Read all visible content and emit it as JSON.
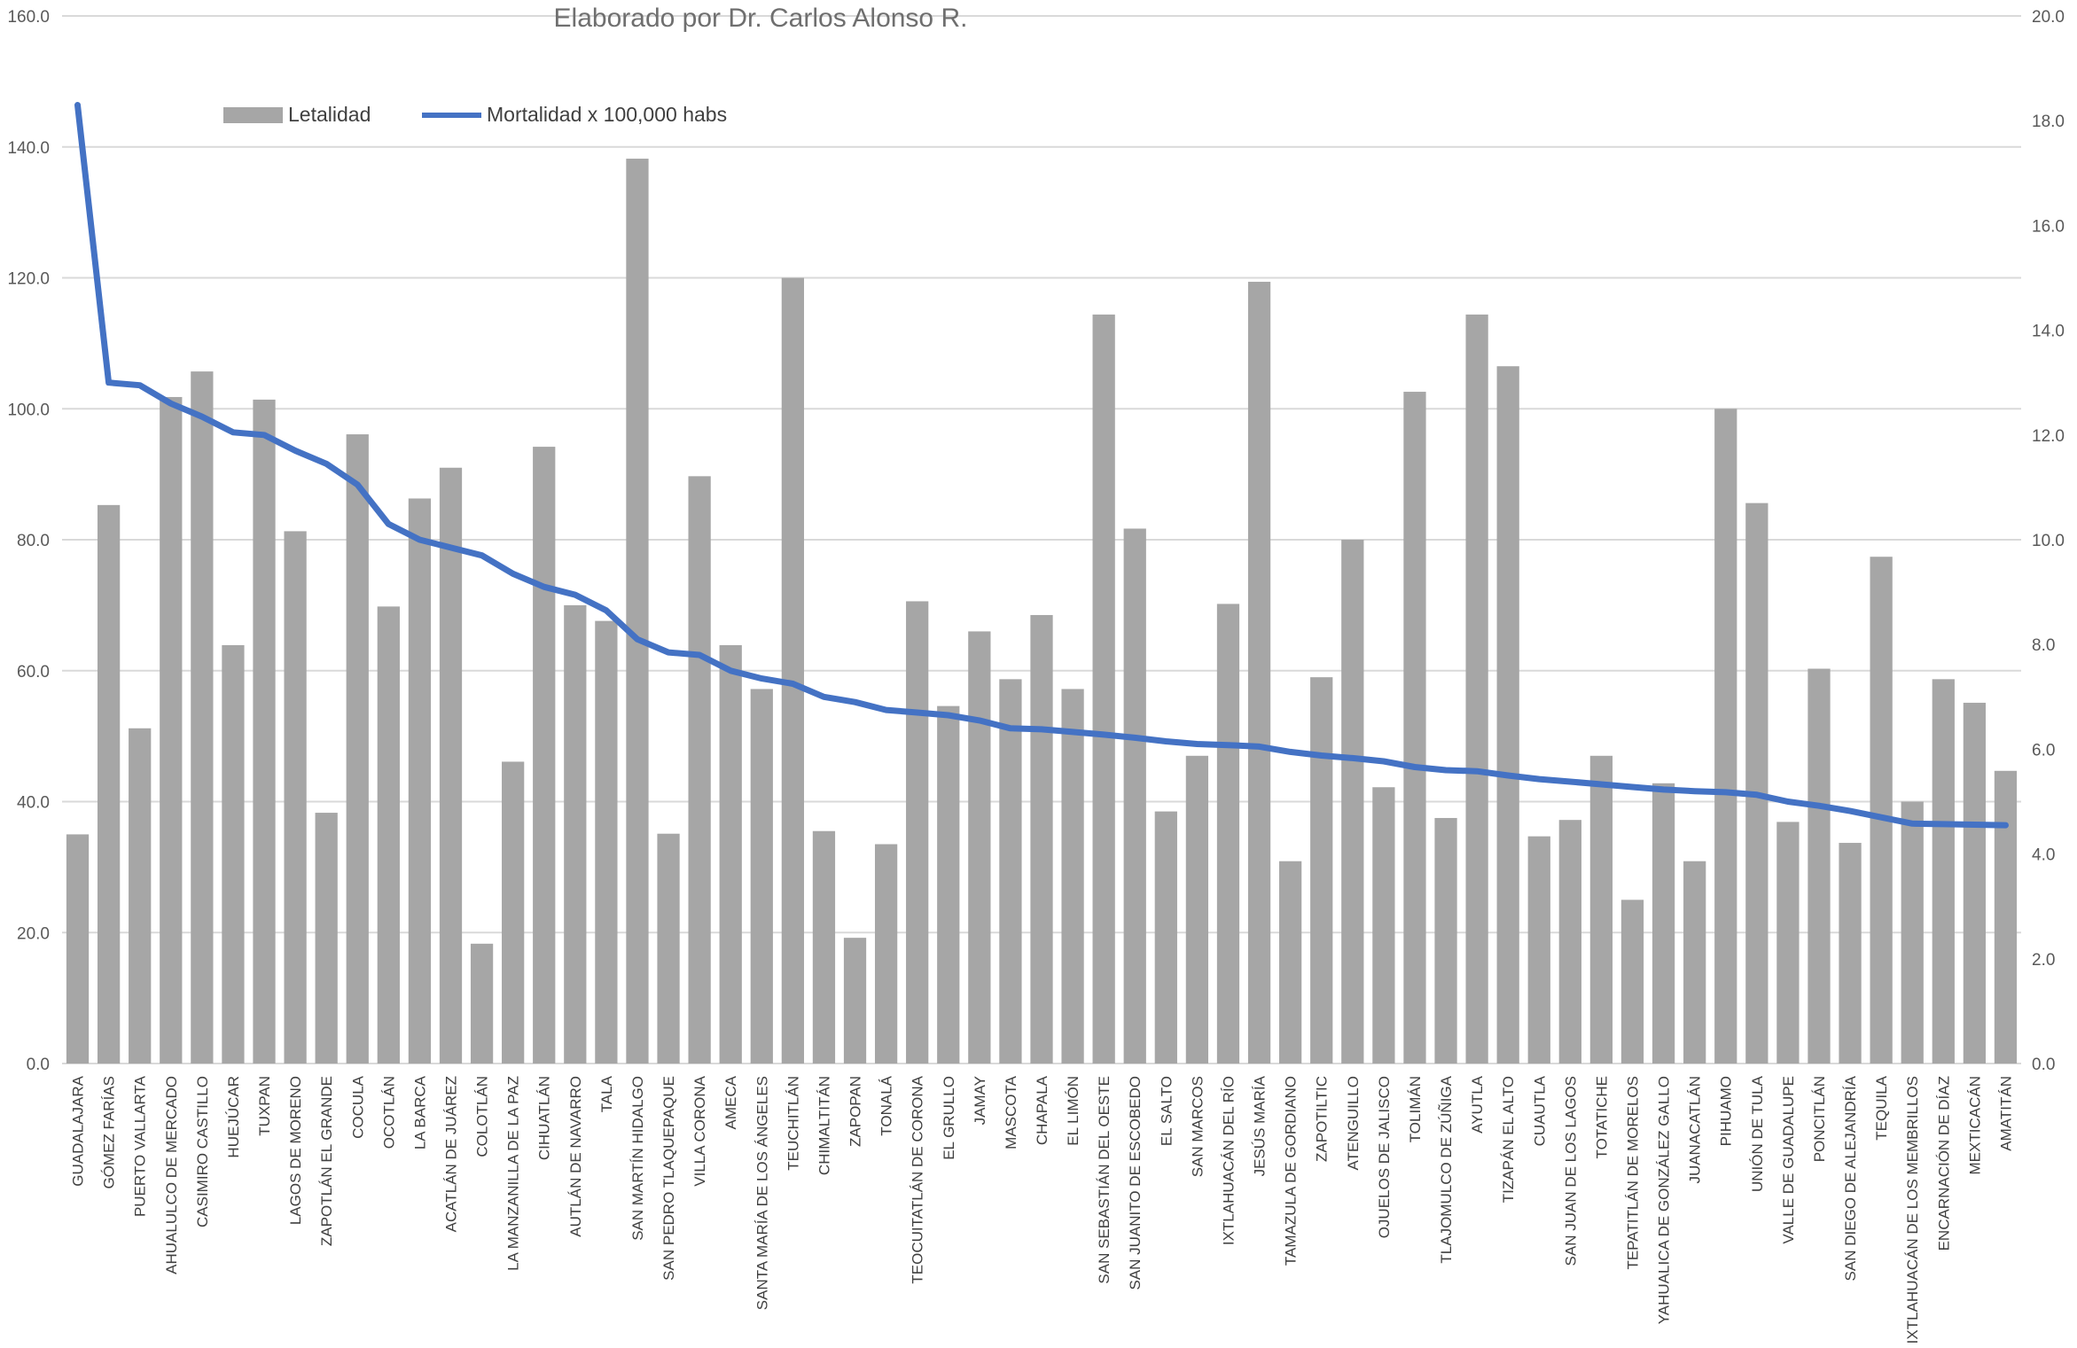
{
  "chart_data": {
    "type": "bar",
    "title": "Elaborado por Dr. Carlos Alonso R.",
    "categories": [
      "GUADALAJARA",
      "GÓMEZ FARÍAS",
      "PUERTO VALLARTA",
      "AHUALULCO DE MERCADO",
      "CASIMIRO CASTILLO",
      "HUEJÚCAR",
      "TUXPAN",
      "LAGOS DE MORENO",
      "ZAPOTLÁN EL GRANDE",
      "COCULA",
      "OCOTLÁN",
      "LA BARCA",
      "ACATLÁN DE JUÁREZ",
      "COLOTLÁN",
      "LA MANZANILLA DE LA PAZ",
      "CIHUATLÁN",
      "AUTLÁN DE NAVARRO",
      "TALA",
      "SAN MARTÍN HIDALGO",
      "SAN PEDRO TLAQUEPAQUE",
      "VILLA CORONA",
      "AMECA",
      "SANTA MARÍA DE LOS ÁNGELES",
      "TEUCHITLÁN",
      "CHIMALTITÁN",
      "ZAPOPAN",
      "TONALÁ",
      "TEOCUITATLÁN DE CORONA",
      "EL GRULLO",
      "JAMAY",
      "MASCOTA",
      "CHAPALA",
      "EL LIMÓN",
      "SAN SEBASTIÁN DEL OESTE",
      "SAN JUANITO DE ESCOBEDO",
      "EL SALTO",
      "SAN MARCOS",
      "IXTLAHUACÁN DEL RÍO",
      "JESÚS MARÍA",
      "TAMAZULA DE GORDIANO",
      "ZAPOTILTIC",
      "ATENGUILLO",
      "OJUELOS DE JALISCO",
      "TOLIMÁN",
      "TLAJOMULCO DE ZÚÑIGA",
      "AYUTLA",
      "TIZAPÁN EL ALTO",
      "CUAUTLA",
      "SAN JUAN DE LOS LAGOS",
      "TOTATICHE",
      "TEPATITLÁN DE MORELOS",
      "YAHUALICA DE GONZÁLEZ GALLO",
      "JUANACATLÁN",
      "PIHUAMO",
      "UNIÓN DE TULA",
      "VALLE DE GUADALUPE",
      "PONCITLÁN",
      "SAN DIEGO DE ALEJANDRÍA",
      "TEQUILA",
      "IXTLAHUACÁN DE LOS MEMBRILLOS",
      "ENCARNACIÓN DE DÍAZ",
      "MEXTICACÁN",
      "AMATITÁN"
    ],
    "series": [
      {
        "name": "Letalidad",
        "type": "bar",
        "axis": "left",
        "color": "#a6a6a6",
        "values": [
          35.0,
          85.3,
          51.2,
          101.8,
          105.7,
          63.9,
          101.4,
          81.3,
          38.3,
          96.1,
          69.8,
          86.3,
          91.0,
          18.3,
          46.1,
          94.2,
          70.0,
          67.6,
          138.2,
          35.1,
          89.7,
          63.9,
          57.2,
          120.0,
          35.5,
          19.2,
          33.5,
          70.6,
          54.6,
          66.0,
          58.7,
          68.5,
          57.2,
          114.4,
          81.7,
          38.5,
          47.0,
          70.2,
          119.4,
          30.9,
          59.0,
          80.0,
          42.2,
          102.6,
          37.5,
          114.4,
          106.5,
          34.7,
          37.2,
          47.0,
          25.0,
          42.8,
          30.9,
          100.0,
          85.6,
          36.9,
          60.3,
          33.7,
          77.4,
          40.0,
          58.7,
          55.1,
          44.7
        ]
      },
      {
        "name": "Mortalidad x 100,000 habs",
        "type": "line",
        "axis": "right",
        "color": "#4472c4",
        "values": [
          18.3,
          13.0,
          12.95,
          12.6,
          12.35,
          12.05,
          12.0,
          11.7,
          11.45,
          11.05,
          10.3,
          10.0,
          9.85,
          9.7,
          9.35,
          9.1,
          8.95,
          8.65,
          8.1,
          7.85,
          7.8,
          7.5,
          7.35,
          7.25,
          7.0,
          6.9,
          6.75,
          6.7,
          6.65,
          6.55,
          6.4,
          6.38,
          6.33,
          6.28,
          6.22,
          6.15,
          6.1,
          6.08,
          6.05,
          5.95,
          5.88,
          5.83,
          5.77,
          5.66,
          5.6,
          5.58,
          5.5,
          5.43,
          5.38,
          5.33,
          5.28,
          5.23,
          5.2,
          5.18,
          5.13,
          5.0,
          4.92,
          4.82,
          4.7,
          4.58,
          4.57,
          4.56,
          4.55
        ]
      }
    ],
    "y_left": {
      "min": 0,
      "max": 160,
      "step": 20,
      "ticks": [
        "0.0",
        "20.0",
        "40.0",
        "60.0",
        "80.0",
        "100.0",
        "120.0",
        "140.0",
        "160.0"
      ]
    },
    "y_right": {
      "min": 0,
      "max": 20,
      "step": 2,
      "ticks": [
        "0.0",
        "2.0",
        "4.0",
        "6.0",
        "8.0",
        "10.0",
        "12.0",
        "14.0",
        "16.0",
        "18.0",
        "20.0"
      ]
    },
    "grid": true,
    "legend": {
      "placement": "top-left",
      "bar_label": "Letalidad",
      "line_label": "Mortalidad x 100,000 habs"
    }
  }
}
